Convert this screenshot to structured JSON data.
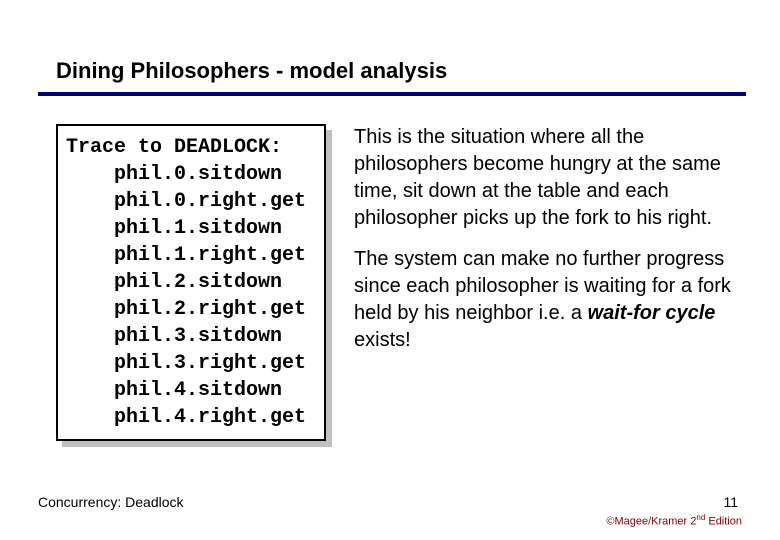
{
  "title": "Dining Philosophers - model analysis",
  "trace": {
    "header": "Trace to DEADLOCK:",
    "lines": [
      "phil.0.sitdown",
      "phil.0.right.get",
      "phil.1.sitdown",
      "phil.1.right.get",
      "phil.2.sitdown",
      "phil.2.right.get",
      "phil.3.sitdown",
      "phil.3.right.get",
      "phil.4.sitdown",
      "phil.4.right.get"
    ]
  },
  "explanation": {
    "p1": "This is the situation where all the philosophers become hungry at the same time, sit down at the table and each philosopher picks up the fork to his right.",
    "p2_before": "The system can make no further progress since each philosopher is waiting for a fork held by his neighbor i.e. a ",
    "p2_emph": "wait-for cycle",
    "p2_after": " exists!"
  },
  "footer": {
    "left": "Concurrency: Deadlock",
    "page": "11",
    "edition_prefix": "©Magee/Kramer ",
    "edition_num": "2",
    "edition_ord": "nd",
    "edition_suffix": " Edition"
  },
  "colors": {
    "rule": "#000080",
    "shadow": "#c0c0c0",
    "edition": "#800000"
  }
}
